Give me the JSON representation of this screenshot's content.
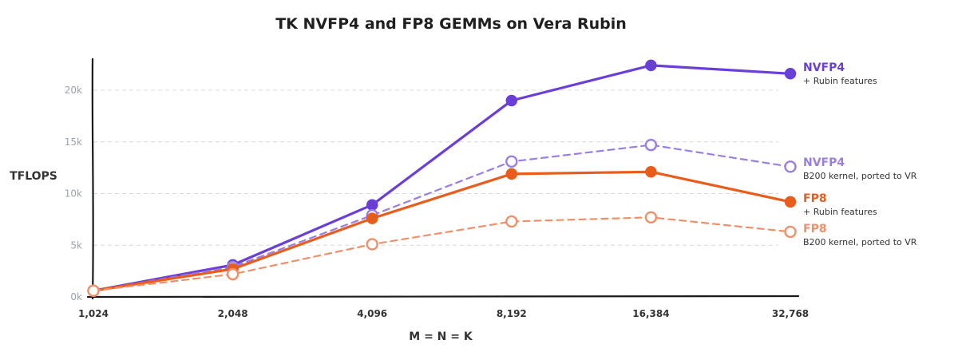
{
  "chart_data": {
    "type": "line",
    "title": "TK NVFP4 and FP8 GEMMs on Vera Rubin",
    "xlabel": "M = N = K",
    "ylabel": "TFLOPS",
    "x": [
      "1,024",
      "2,048",
      "4,096",
      "8,192",
      "16,384",
      "32,768"
    ],
    "yticks": [
      "0k",
      "5k",
      "10k",
      "15k",
      "20k"
    ],
    "ytick_values": [
      0,
      5000,
      10000,
      15000,
      20000
    ],
    "ylim": [
      0,
      23000
    ],
    "grid": true,
    "legend": "right",
    "series": [
      {
        "name": "NVFP4",
        "sublabel": "+ Rubin features",
        "color": "#6a3fd9",
        "style": "solid",
        "marker": "filled",
        "values": [
          600,
          3100,
          8900,
          19000,
          22400,
          21600
        ]
      },
      {
        "name": "NVFP4",
        "sublabel": "B200 kernel, ported to VR",
        "color": "#9b7ee3",
        "style": "dashed",
        "marker": "hollow",
        "values": [
          600,
          2900,
          7900,
          13100,
          14700,
          12600
        ]
      },
      {
        "name": "FP8",
        "sublabel": "+ Rubin features",
        "color": "#e85c1c",
        "style": "solid",
        "marker": "filled",
        "values": [
          600,
          2700,
          7600,
          11900,
          12100,
          9200
        ]
      },
      {
        "name": "FP8",
        "sublabel": "B200 kernel, ported to VR",
        "color": "#f0906a",
        "style": "dashed",
        "marker": "hollow",
        "values": [
          600,
          2200,
          5100,
          7300,
          7700,
          6300
        ]
      }
    ]
  }
}
